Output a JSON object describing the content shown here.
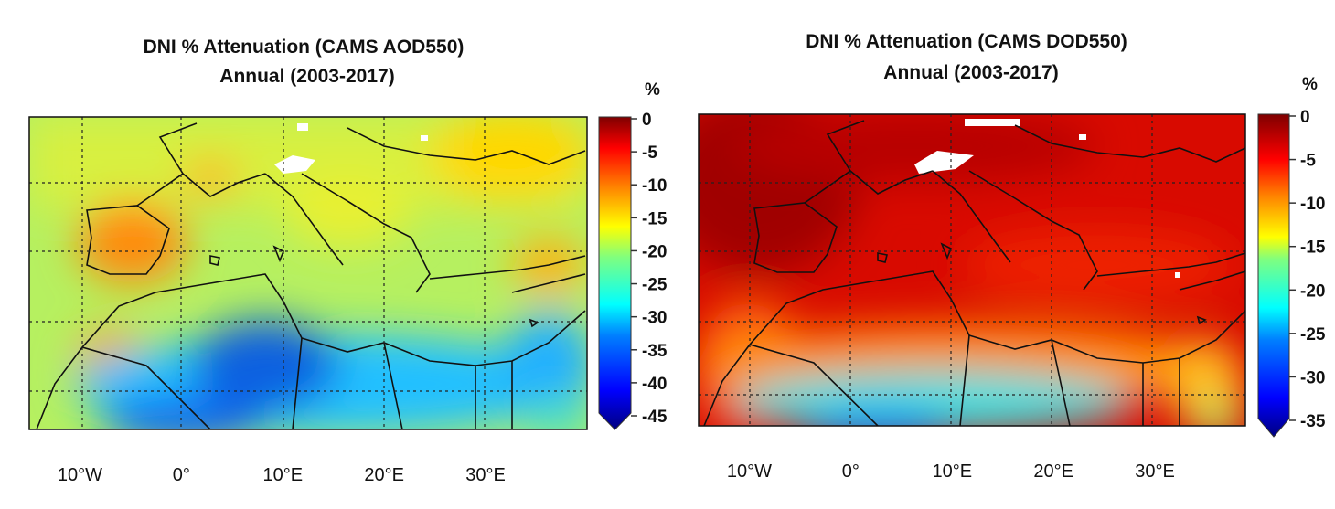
{
  "chart_data": [
    {
      "type": "heatmap",
      "title": "DNI % Attenuation (CAMS AOD550)",
      "subtitle": "Annual (2003-2017)",
      "colorbar_unit": "%",
      "colorbar_ticks": [
        "0",
        "-5",
        "-10",
        "-15",
        "-20",
        "-25",
        "-30",
        "-35",
        "-40",
        "-45"
      ],
      "colorbar_range": [
        -45,
        0
      ],
      "colorbar_extend": "min",
      "colormap": [
        "#00007f",
        "#0000ff",
        "#007fff",
        "#00ffff",
        "#7fff7f",
        "#ffff00",
        "#ff7f00",
        "#ff0000",
        "#7f0000"
      ],
      "x_tick_labels": [
        "10°W",
        "0°",
        "10°E",
        "20°E",
        "30°E"
      ],
      "x_ticks": [
        -10,
        0,
        10,
        20,
        30
      ],
      "xlim": [
        -15,
        40
      ],
      "grid": true,
      "missing_color": "#ffffff"
    },
    {
      "type": "heatmap",
      "title": "DNI % Attenuation (CAMS DOD550)",
      "subtitle": "Annual (2003-2017)",
      "colorbar_unit": "%",
      "colorbar_ticks": [
        "0",
        "-5",
        "-10",
        "-15",
        "-20",
        "-25",
        "-30",
        "-35"
      ],
      "colorbar_range": [
        -35,
        0
      ],
      "colorbar_extend": "min",
      "colormap": [
        "#00007f",
        "#0000ff",
        "#007fff",
        "#00ffff",
        "#7fff7f",
        "#ffff00",
        "#ff7f00",
        "#ff0000",
        "#7f0000"
      ],
      "x_tick_labels": [
        "10°W",
        "0°",
        "10°E",
        "20°E",
        "30°E"
      ],
      "x_ticks": [
        -10,
        0,
        10,
        20,
        30
      ],
      "xlim": [
        -15,
        40
      ],
      "grid": true,
      "missing_color": "#ffffff"
    }
  ]
}
